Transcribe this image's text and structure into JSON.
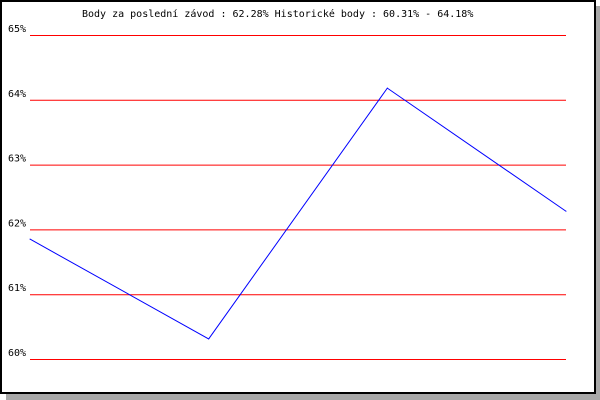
{
  "chart_data": {
    "type": "line",
    "title": "Body za poslední závod : 62.28%  Historické body : 60.31% - 64.18%",
    "xlabel": "",
    "ylabel": "",
    "ylim": [
      60,
      65
    ],
    "yticks": [
      "60%",
      "61%",
      "62%",
      "63%",
      "64%",
      "65%"
    ],
    "grid": true,
    "x": [
      1,
      2,
      3,
      4
    ],
    "series": [
      {
        "values": [
          61.85,
          60.31,
          64.18,
          62.28
        ]
      }
    ],
    "colors": {
      "line": "#0000ff",
      "grid": "#ff0000"
    }
  }
}
